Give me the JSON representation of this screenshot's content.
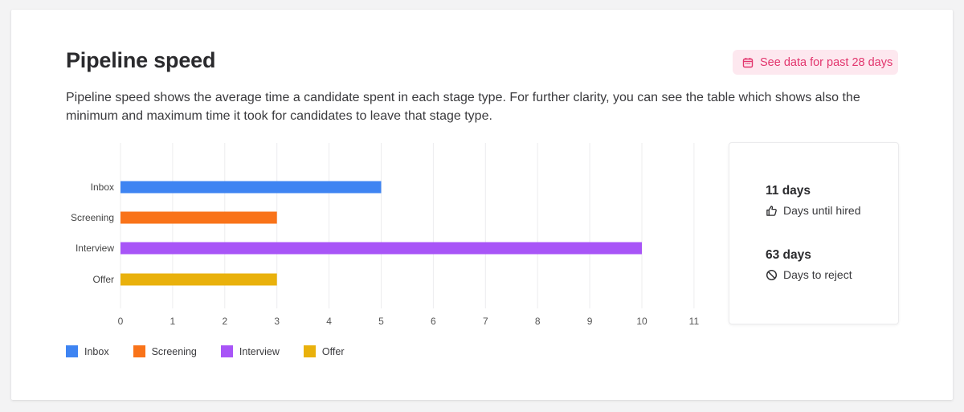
{
  "header": {
    "title": "Pipeline speed",
    "date_button_label": "See data for past 28 days",
    "description": "Pipeline speed shows the average time a candidate spent in each stage type. For further clarity, you can see the table which shows also the minimum and maximum time it took for candidates to leave that stage type."
  },
  "colors": {
    "accent_pink": "#e2356d",
    "inbox": "#3e84f2",
    "screening": "#f97319",
    "interview": "#a855f7",
    "offer": "#e9b10c"
  },
  "chart_data": {
    "type": "bar",
    "orientation": "horizontal",
    "categories": [
      "Inbox",
      "Screening",
      "Interview",
      "Offer"
    ],
    "values": [
      5,
      3,
      10,
      3
    ],
    "colors": [
      "#3e84f2",
      "#f97319",
      "#a855f7",
      "#e9b10c"
    ],
    "xticks": [
      "0",
      "1",
      "2",
      "3",
      "4",
      "5",
      "6",
      "7",
      "8",
      "9",
      "10",
      "11"
    ],
    "xlim": [
      0,
      11
    ],
    "grid": "vertical",
    "legend_position": "bottom-left",
    "legend": [
      "Inbox",
      "Screening",
      "Interview",
      "Offer"
    ]
  },
  "stats": {
    "hired": {
      "value": "11 days",
      "label": "Days until hired",
      "icon": "thumbs-up-icon"
    },
    "reject": {
      "value": "63 days",
      "label": "Days to reject",
      "icon": "ban-icon"
    }
  }
}
